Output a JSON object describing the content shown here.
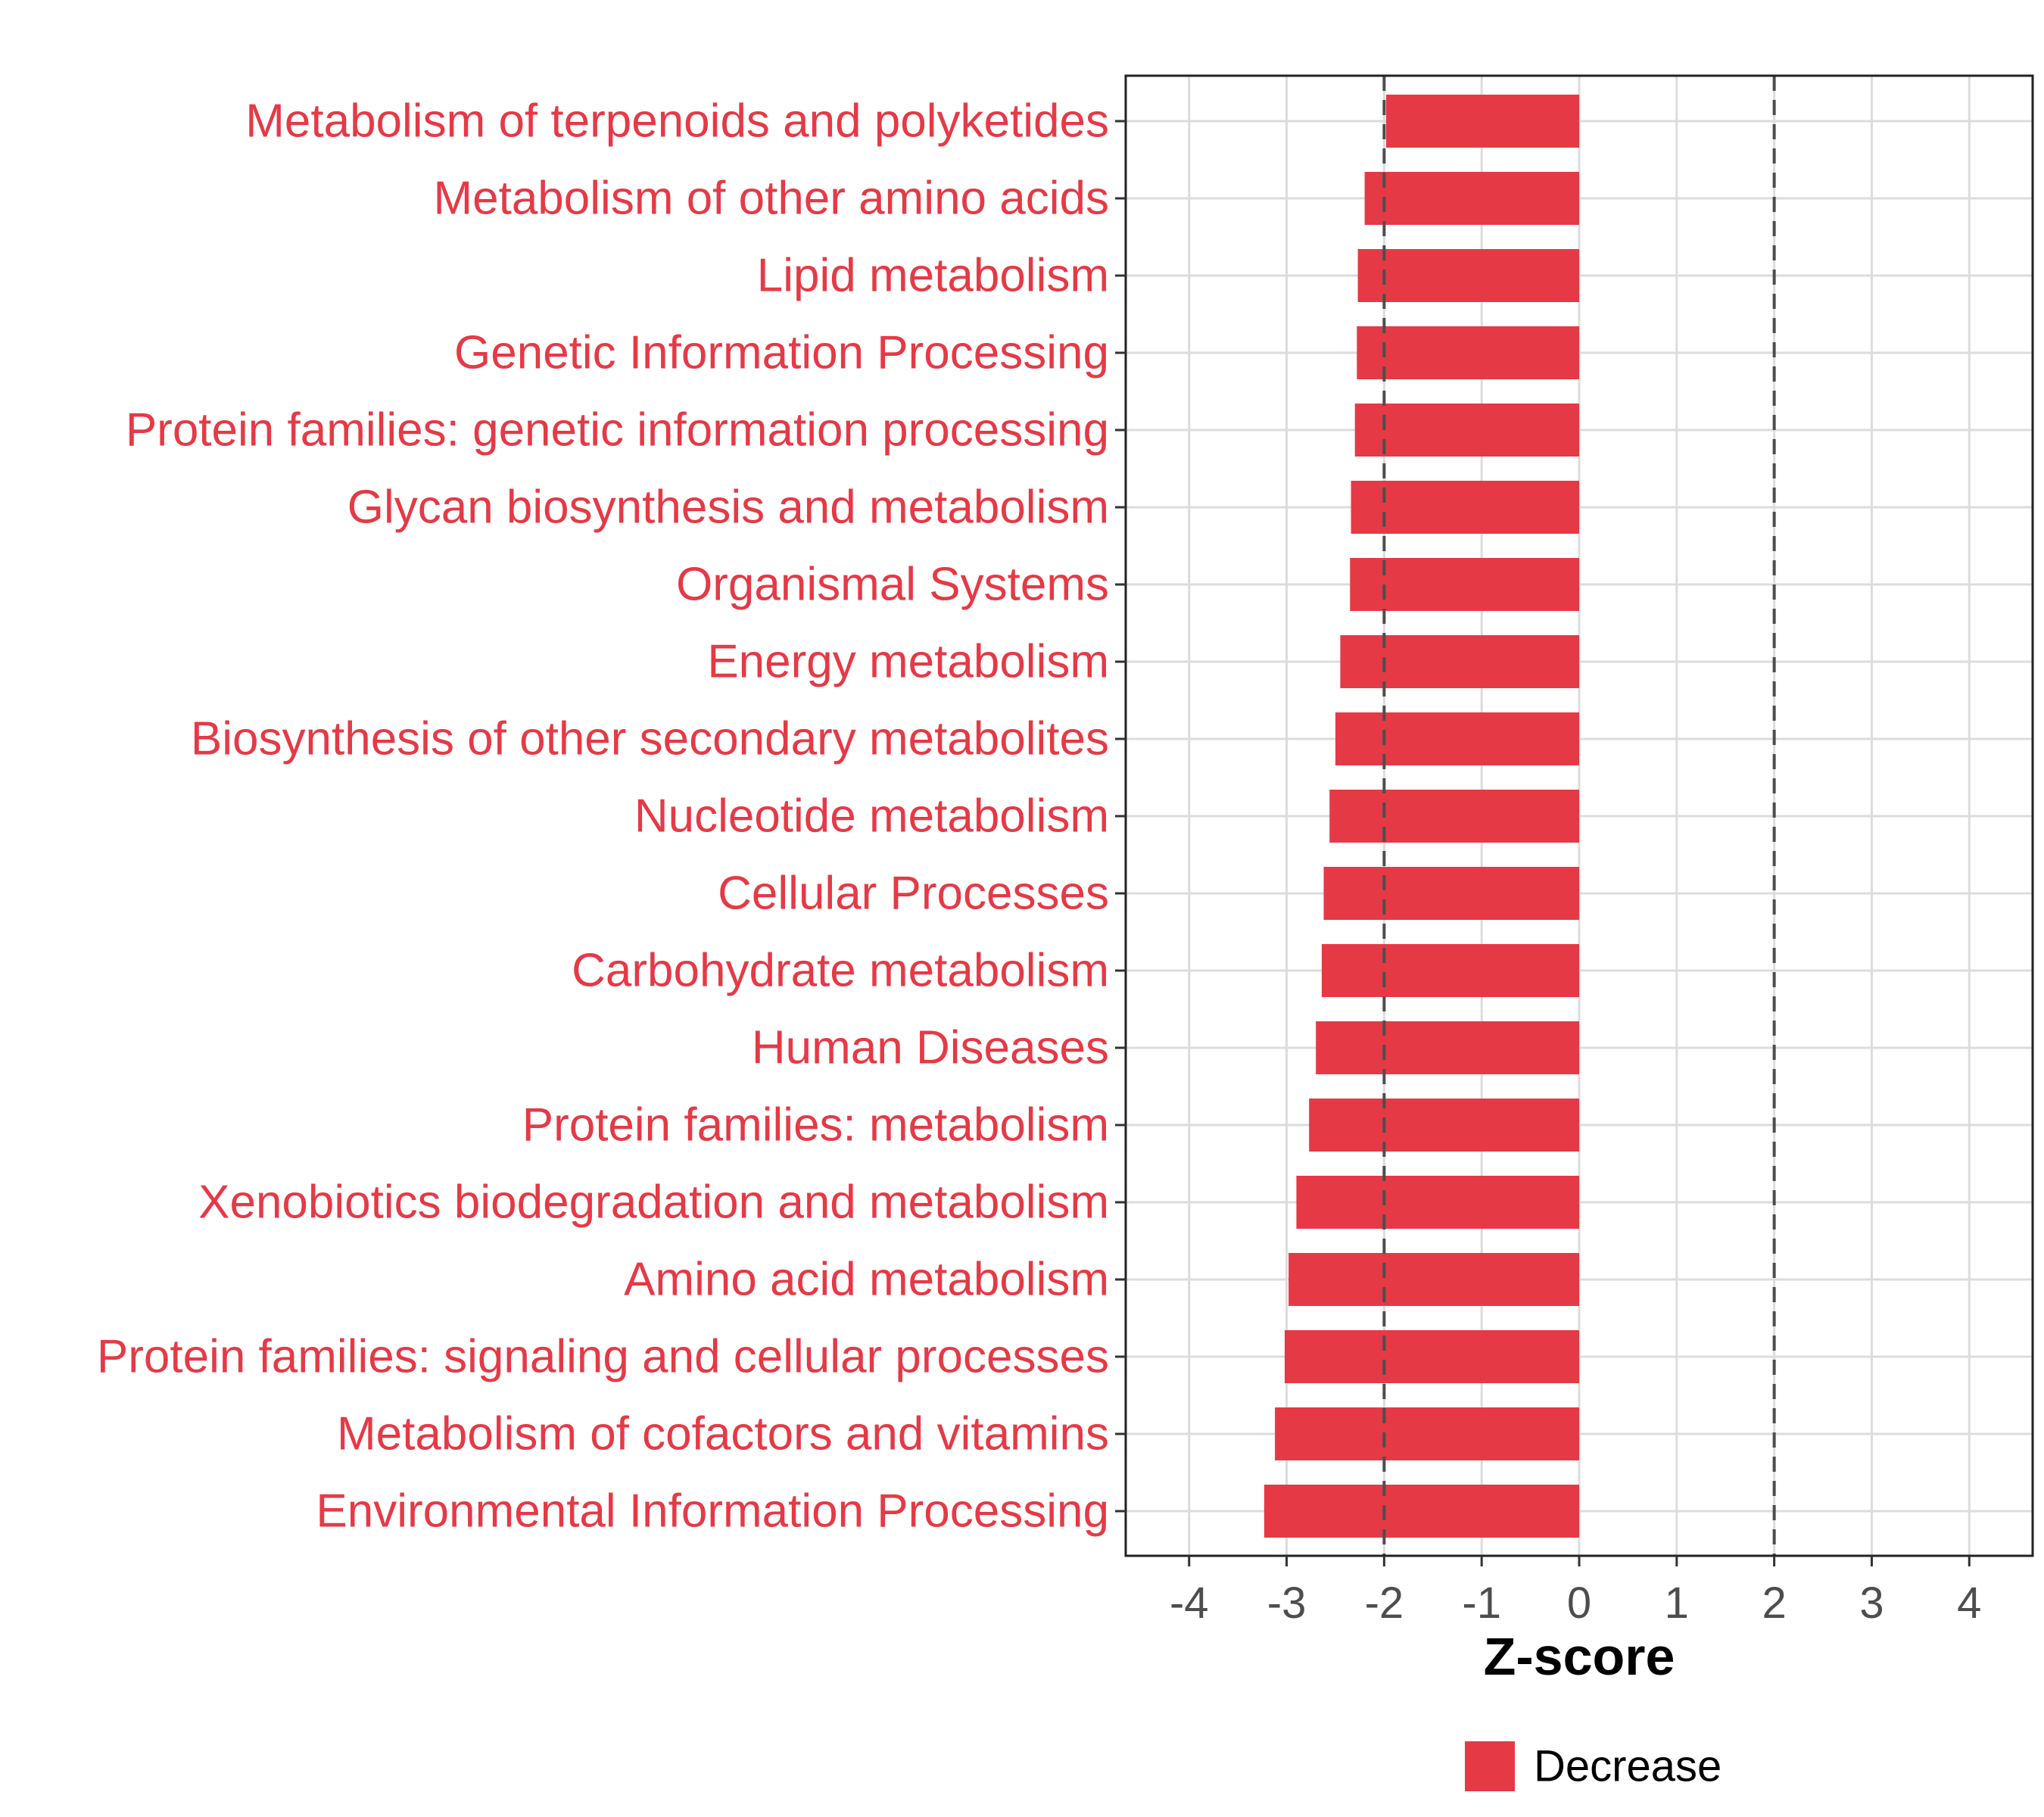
{
  "chart_data": {
    "type": "bar",
    "orientation": "horizontal",
    "xlabel": "Z-score",
    "xlim": [
      -4.65,
      4.65
    ],
    "xticks": [
      -4,
      -3,
      -2,
      -1,
      0,
      1,
      2,
      3,
      4
    ],
    "xtick_labels": [
      "-4",
      "-3",
      "-2",
      "-1",
      "0",
      "1",
      "2",
      "3",
      "4"
    ],
    "reference_lines": [
      -2,
      2
    ],
    "grid": true,
    "categories": [
      "Metabolism of terpenoids and polyketides",
      "Metabolism of other amino acids",
      "Lipid metabolism",
      "Genetic Information Processing",
      "Protein families: genetic information processing",
      "Glycan biosynthesis and metabolism",
      "Organismal Systems",
      "Energy metabolism",
      "Biosynthesis of other secondary metabolites",
      "Nucleotide metabolism",
      "Cellular Processes",
      "Carbohydrate metabolism",
      "Human Diseases",
      "Protein families: metabolism",
      "Xenobiotics biodegradation and metabolism",
      "Amino acid metabolism",
      "Protein families: signaling and cellular processes",
      "Metabolism of cofactors and vitamins",
      "Environmental Information Processing"
    ],
    "values": [
      -1.98,
      -2.2,
      -2.27,
      -2.28,
      -2.3,
      -2.34,
      -2.35,
      -2.45,
      -2.5,
      -2.56,
      -2.62,
      -2.64,
      -2.7,
      -2.77,
      -2.9,
      -2.98,
      -3.02,
      -3.12,
      -3.23
    ],
    "series": [
      {
        "name": "Decrease",
        "color": "#E63946"
      }
    ],
    "legend": {
      "position": "bottom",
      "entries": [
        "Decrease"
      ]
    }
  }
}
